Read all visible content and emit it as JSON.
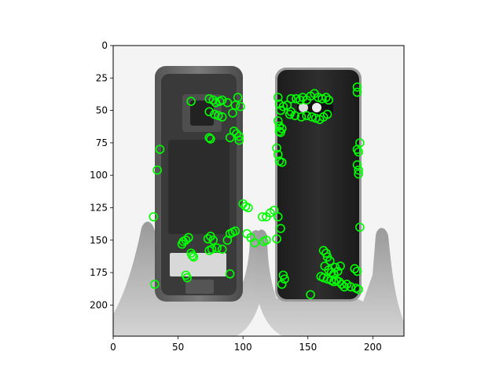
{
  "chart_data": {
    "type": "scatter",
    "title": "",
    "xlabel": "",
    "ylabel": "",
    "xlim": [
      0,
      224
    ],
    "ylim": [
      224,
      0
    ],
    "y_inverted": true,
    "grid": false,
    "legend": "none",
    "xticks": [
      0,
      50,
      100,
      150,
      200
    ],
    "yticks": [
      0,
      25,
      50,
      75,
      100,
      125,
      150,
      175,
      200
    ],
    "background_image": "grayscale-photo-two-hands-holding-smartphone-frame-and-back-cover",
    "marker": {
      "shape": "circle-outline",
      "color": "#00ff00"
    },
    "series": [
      {
        "points": [
          [
            60,
            43
          ],
          [
            74,
            41
          ],
          [
            77,
            42
          ],
          [
            79,
            44
          ],
          [
            82,
            43
          ],
          [
            84,
            42
          ],
          [
            88,
            44
          ],
          [
            96,
            40
          ],
          [
            98,
            47
          ],
          [
            94,
            46
          ],
          [
            74,
            51
          ],
          [
            78,
            53
          ],
          [
            81,
            54
          ],
          [
            84,
            55
          ],
          [
            92,
            52
          ],
          [
            74,
            71
          ],
          [
            75,
            72
          ],
          [
            90,
            71
          ],
          [
            93,
            66
          ],
          [
            95,
            68
          ],
          [
            97,
            70
          ],
          [
            97,
            73
          ],
          [
            36,
            80
          ],
          [
            34,
            96
          ],
          [
            31,
            132
          ],
          [
            32,
            184
          ],
          [
            54,
            151
          ],
          [
            56,
            150
          ],
          [
            58,
            148
          ],
          [
            53,
            153
          ],
          [
            60,
            160
          ],
          [
            61,
            162
          ],
          [
            62,
            163
          ],
          [
            56,
            177
          ],
          [
            57,
            179
          ],
          [
            73,
            149
          ],
          [
            75,
            147
          ],
          [
            77,
            150
          ],
          [
            74,
            158
          ],
          [
            76,
            157
          ],
          [
            80,
            156
          ],
          [
            84,
            157
          ],
          [
            88,
            150
          ],
          [
            90,
            145
          ],
          [
            92,
            144
          ],
          [
            94,
            143
          ],
          [
            90,
            176
          ],
          [
            100,
            122
          ],
          [
            102,
            124
          ],
          [
            104,
            125
          ],
          [
            103,
            145
          ],
          [
            106,
            148
          ],
          [
            109,
            152
          ],
          [
            115,
            132
          ],
          [
            118,
            132
          ],
          [
            121,
            129
          ],
          [
            124,
            127
          ],
          [
            127,
            40
          ],
          [
            128,
            45
          ],
          [
            129,
            50
          ],
          [
            131,
            47
          ],
          [
            134,
            46
          ],
          [
            137,
            51
          ],
          [
            127,
            58
          ],
          [
            128,
            62
          ],
          [
            128,
            66
          ],
          [
            130,
            64
          ],
          [
            129,
            67
          ],
          [
            126,
            79
          ],
          [
            127,
            84
          ],
          [
            128,
            89
          ],
          [
            130,
            90
          ],
          [
            137,
            41
          ],
          [
            141,
            41
          ],
          [
            144,
            42
          ],
          [
            146,
            40
          ],
          [
            149,
            42
          ],
          [
            152,
            39
          ],
          [
            155,
            37
          ],
          [
            158,
            40
          ],
          [
            161,
            41
          ],
          [
            164,
            40
          ],
          [
            166,
            42
          ],
          [
            136,
            53
          ],
          [
            140,
            54
          ],
          [
            145,
            55
          ],
          [
            149,
            54
          ],
          [
            153,
            55
          ],
          [
            156,
            56
          ],
          [
            159,
            57
          ],
          [
            162,
            55
          ],
          [
            165,
            53
          ],
          [
            188,
            32
          ],
          [
            188,
            36
          ],
          [
            190,
            75
          ],
          [
            188,
            80
          ],
          [
            189,
            82
          ],
          [
            188,
            92
          ],
          [
            189,
            96
          ],
          [
            189,
            99
          ],
          [
            190,
            140
          ],
          [
            116,
            151
          ],
          [
            118,
            150
          ],
          [
            127,
            132
          ],
          [
            129,
            141
          ],
          [
            126,
            149
          ],
          [
            131,
            177
          ],
          [
            132,
            180
          ],
          [
            130,
            184
          ],
          [
            152,
            192
          ],
          [
            162,
            158
          ],
          [
            164,
            160
          ],
          [
            165,
            163
          ],
          [
            167,
            166
          ],
          [
            163,
            170
          ],
          [
            166,
            173
          ],
          [
            168,
            175
          ],
          [
            170,
            176
          ],
          [
            160,
            178
          ],
          [
            162,
            179
          ],
          [
            165,
            180
          ],
          [
            168,
            181
          ],
          [
            170,
            182
          ],
          [
            172,
            181
          ],
          [
            174,
            182
          ],
          [
            176,
            184
          ],
          [
            178,
            186
          ],
          [
            180,
            184
          ],
          [
            183,
            186
          ],
          [
            186,
            172
          ],
          [
            188,
            174
          ],
          [
            187,
            187
          ],
          [
            189,
            188
          ],
          [
            171,
            171
          ],
          [
            173,
            174
          ],
          [
            175,
            170
          ]
        ]
      }
    ]
  }
}
